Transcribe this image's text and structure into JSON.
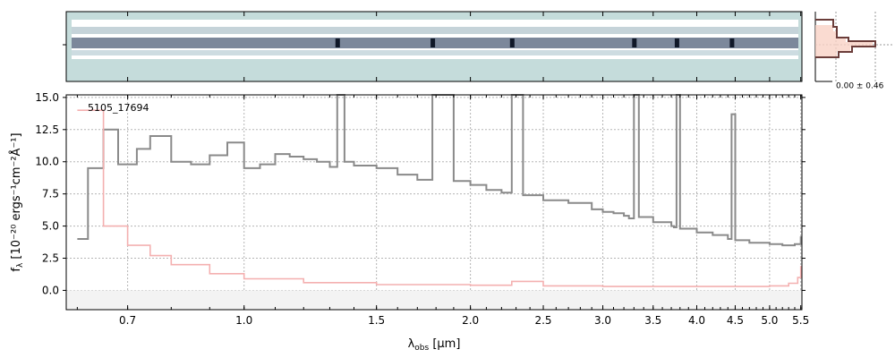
{
  "chart_data": {
    "type": "line",
    "object_label": "5105_17694",
    "xlabel_main": "λ",
    "xlabel_sub": "obs",
    "xlabel_unit": " [μm]",
    "ylabel_prefix": "f",
    "ylabel_sub": "λ",
    "ylabel_unit": " [10⁻²⁰ ergs⁻¹cm⁻²Å⁻¹]",
    "x_scale": "log",
    "xlim": [
      0.58,
      5.52
    ],
    "ylim": [
      -1.5,
      15.2
    ],
    "grid": true,
    "x_ticks": [
      0.7,
      1.0,
      1.5,
      2.0,
      2.5,
      3.0,
      3.5,
      4.0,
      4.5,
      5.0,
      5.5
    ],
    "x_tick_labels": [
      "0.7",
      "1.0",
      "1.5",
      "2.0",
      "2.5",
      "3.0",
      "3.5",
      "4.0",
      "4.5",
      "5.0",
      "5.5"
    ],
    "y_ticks": [
      0.0,
      2.5,
      5.0,
      7.5,
      10.0,
      12.5,
      15.0
    ],
    "y_tick_labels": [
      "0.0",
      "2.5",
      "5.0",
      "7.5",
      "10.0",
      "12.5",
      "15.0"
    ],
    "series": [
      {
        "role": "flux",
        "color": "#8a8a8a",
        "x": [
          0.6,
          0.62,
          0.65,
          0.68,
          0.72,
          0.75,
          0.8,
          0.85,
          0.9,
          0.95,
          1.0,
          1.05,
          1.1,
          1.15,
          1.2,
          1.25,
          1.3,
          1.33,
          1.36,
          1.4,
          1.5,
          1.6,
          1.7,
          1.78,
          1.9,
          2.0,
          2.1,
          2.2,
          2.27,
          2.35,
          2.5,
          2.7,
          2.9,
          3.0,
          3.1,
          3.2,
          3.25,
          3.3,
          3.35,
          3.5,
          3.7,
          3.73,
          3.76,
          3.8,
          4.0,
          4.2,
          4.4,
          4.45,
          4.5,
          4.7,
          5.0,
          5.2,
          5.4,
          5.5
        ],
        "y": [
          4.0,
          9.5,
          12.5,
          9.8,
          11.0,
          12.0,
          10.0,
          9.8,
          10.5,
          11.5,
          9.5,
          9.8,
          10.6,
          10.4,
          10.2,
          10.0,
          9.6,
          15.5,
          10.0,
          9.7,
          9.5,
          9.0,
          8.6,
          15.5,
          8.5,
          8.2,
          7.8,
          7.6,
          15.2,
          7.4,
          7.0,
          6.8,
          6.3,
          6.1,
          6.0,
          5.8,
          5.6,
          15.4,
          5.7,
          5.3,
          5.0,
          4.9,
          15.4,
          4.8,
          4.5,
          4.3,
          4.0,
          13.7,
          3.9,
          3.7,
          3.6,
          3.5,
          3.6,
          4.2
        ]
      },
      {
        "role": "error",
        "color": "#f4b0b0",
        "x": [
          0.6,
          0.65,
          0.7,
          0.75,
          0.8,
          0.9,
          1.0,
          1.2,
          1.5,
          2.0,
          2.27,
          2.5,
          3.0,
          4.0,
          5.0,
          5.3,
          5.45,
          5.5
        ],
        "y": [
          14.0,
          5.0,
          3.5,
          2.7,
          2.0,
          1.3,
          0.9,
          0.6,
          0.45,
          0.4,
          0.7,
          0.35,
          0.3,
          0.3,
          0.35,
          0.55,
          1.0,
          1.9
        ]
      }
    ],
    "inset_label": "0.00 ± 0.46"
  }
}
